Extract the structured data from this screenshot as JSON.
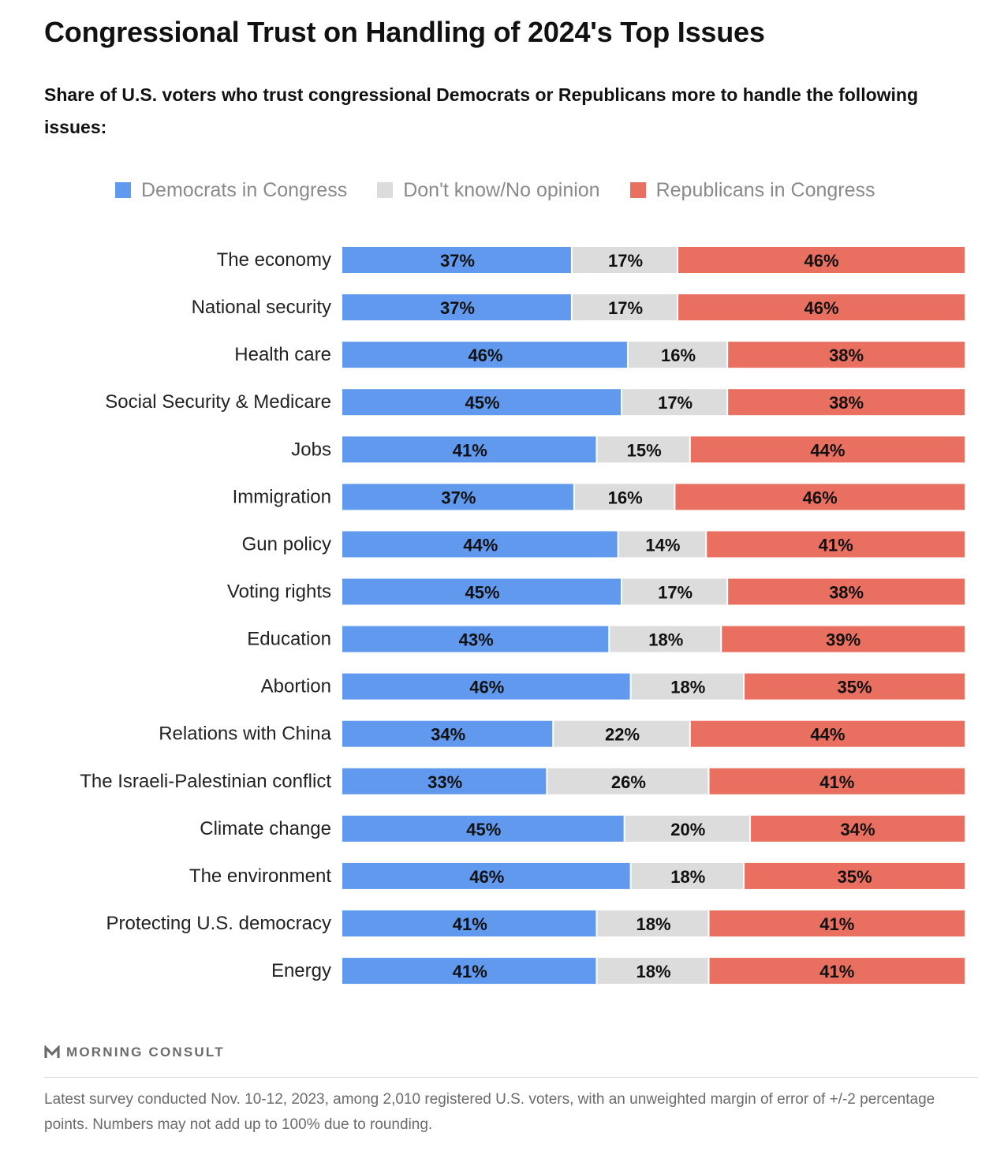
{
  "title": "Congressional Trust on Handling of 2024's Top Issues",
  "subtitle": "Share of U.S. voters who trust congressional Democrats or Republicans more to handle the following issues:",
  "legend": [
    {
      "label": "Democrats in Congress",
      "color": "#6199ee"
    },
    {
      "label": "Don't know/No opinion",
      "color": "#dcdcdc"
    },
    {
      "label": "Republicans in Congress",
      "color": "#e96f60"
    }
  ],
  "chart_data": {
    "type": "bar",
    "orientation": "horizontal",
    "stacked": true,
    "categories": [
      "The economy",
      "National security",
      "Health care",
      "Social Security & Medicare",
      "Jobs",
      "Immigration",
      "Gun policy",
      "Voting rights",
      "Education",
      "Abortion",
      "Relations with China",
      "The Israeli-Palestinian conflict",
      "Climate change",
      "The environment",
      "Protecting U.S. democracy",
      "Energy"
    ],
    "series": [
      {
        "name": "Democrats in Congress",
        "color": "#6199ee",
        "values": [
          37,
          37,
          46,
          45,
          41,
          37,
          44,
          45,
          43,
          46,
          34,
          33,
          45,
          46,
          41,
          41
        ]
      },
      {
        "name": "Don't know/No opinion",
        "color": "#dcdcdc",
        "values": [
          17,
          17,
          16,
          17,
          15,
          16,
          14,
          17,
          18,
          18,
          22,
          26,
          20,
          18,
          18,
          18
        ]
      },
      {
        "name": "Republicans in Congress",
        "color": "#e96f60",
        "values": [
          46,
          46,
          38,
          38,
          44,
          46,
          41,
          38,
          39,
          35,
          44,
          41,
          34,
          35,
          41,
          41
        ]
      }
    ],
    "value_suffix": "%",
    "xlim": [
      0,
      100
    ],
    "legend_position": "top",
    "grid": false
  },
  "brand": "MORNING CONSULT",
  "footnote": "Latest survey conducted Nov. 10-12, 2023, among 2,010 registered U.S. voters, with an unweighted margin of error of +/-2 percentage points. Numbers may not add up to 100% due to rounding."
}
